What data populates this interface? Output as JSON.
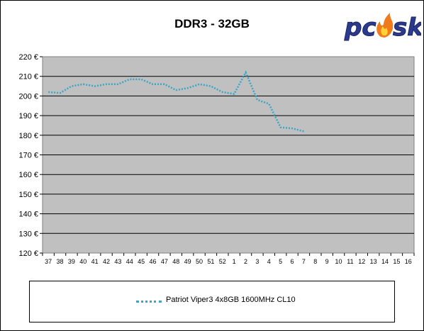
{
  "chart_data": {
    "type": "line",
    "title": "DDR3 - 32GB",
    "xlabel": "",
    "ylabel": "",
    "categories": [
      "37",
      "38",
      "39",
      "40",
      "41",
      "42",
      "43",
      "44",
      "45",
      "46",
      "47",
      "48",
      "49",
      "50",
      "51",
      "52",
      "1",
      "2",
      "3",
      "4",
      "5",
      "6",
      "7",
      "8",
      "9",
      "10",
      "11",
      "12",
      "13",
      "14",
      "15",
      "16"
    ],
    "series": [
      {
        "name": "Patriot Viper3 4x8GB 1600MHz CL10",
        "color": "#3aa6c4",
        "values": [
          202,
          201.5,
          205,
          206,
          205,
          206,
          206,
          208.5,
          208.5,
          206,
          206,
          203,
          204,
          206,
          205,
          202,
          201,
          212,
          198,
          196,
          184,
          183.5,
          182,
          null,
          null,
          null,
          null,
          null,
          null,
          null,
          null,
          null
        ]
      }
    ],
    "ylim": [
      120,
      220
    ],
    "ytick_step": 10,
    "ytick_labels": [
      "120 €",
      "130 €",
      "140 €",
      "150 €",
      "160 €",
      "170 €",
      "180 €",
      "190 €",
      "200 €",
      "210 €",
      "220 €"
    ],
    "grid": true,
    "legend_position": "bottom",
    "plot_background": "#c0c0c0"
  },
  "logo": {
    "text": "pcsk"
  }
}
